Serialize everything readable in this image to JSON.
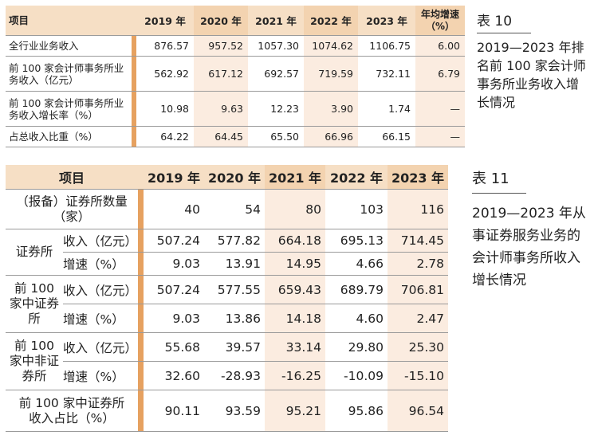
{
  "table10": {
    "caption_num": "表 10",
    "caption_text": "2019—2023 年排名前 100 家会计师事务所业务收入增长情况",
    "header": {
      "item": "项目",
      "years": [
        "2019 年",
        "2020 年",
        "2021 年",
        "2022 年",
        "2023 年"
      ],
      "avg": "年均增速（%）"
    },
    "rows": [
      {
        "label": "全行业业务收入",
        "values": [
          "876.57",
          "957.52",
          "1057.30",
          "1074.62",
          "1106.75"
        ],
        "avg": "6.00"
      },
      {
        "label": "前 100 家会计师事务所业务收入（亿元）",
        "values": [
          "562.92",
          "617.12",
          "692.57",
          "719.59",
          "732.11"
        ],
        "avg": "6.79"
      },
      {
        "label": "前 100 家会计师事务所业务收入增长率（%）",
        "values": [
          "10.98",
          "9.63",
          "12.23",
          "3.90",
          "1.74"
        ],
        "avg": "—"
      },
      {
        "label": "占总收入比重（%）",
        "values": [
          "64.22",
          "64.45",
          "65.50",
          "66.96",
          "66.15"
        ],
        "avg": "—"
      }
    ]
  },
  "table11": {
    "caption_num": "表 11",
    "caption_text": "2019—2023 年从事证券服务业务的会计师事务所收入增长情况",
    "header": {
      "item": "项目",
      "years": [
        "2019 年",
        "2020 年",
        "2021 年",
        "2022 年",
        "2023 年"
      ]
    },
    "row_count": {
      "label": "（报备）证券所数量（家）",
      "values": [
        "40",
        "54",
        "80",
        "103",
        "116"
      ]
    },
    "groups": [
      {
        "name": "证券所",
        "rows": [
          {
            "label": "收入（亿元）",
            "values": [
              "507.24",
              "577.82",
              "664.18",
              "695.13",
              "714.45"
            ]
          },
          {
            "label": "增速（%）",
            "values": [
              "9.03",
              "13.91",
              "14.95",
              "4.66",
              "2.78"
            ]
          }
        ]
      },
      {
        "name": "前 100 家中证券所",
        "rows": [
          {
            "label": "收入（亿元）",
            "values": [
              "507.24",
              "577.55",
              "659.43",
              "689.79",
              "706.81"
            ]
          },
          {
            "label": "增速（%）",
            "values": [
              "9.03",
              "13.86",
              "14.18",
              "4.60",
              "2.47"
            ]
          }
        ]
      },
      {
        "name": "前 100 家中非证券所",
        "rows": [
          {
            "label": "收入（亿元）",
            "values": [
              "55.68",
              "39.57",
              "33.14",
              "29.80",
              "25.30"
            ]
          },
          {
            "label": "增速（%）",
            "values": [
              "32.60",
              "-28.93",
              "-16.25",
              "-10.09",
              "-15.10"
            ]
          }
        ]
      }
    ],
    "row_share": {
      "label": "前 100 家中证券所收入占比（%）",
      "values": [
        "90.11",
        "93.59",
        "95.21",
        "95.86",
        "96.54"
      ]
    }
  }
}
